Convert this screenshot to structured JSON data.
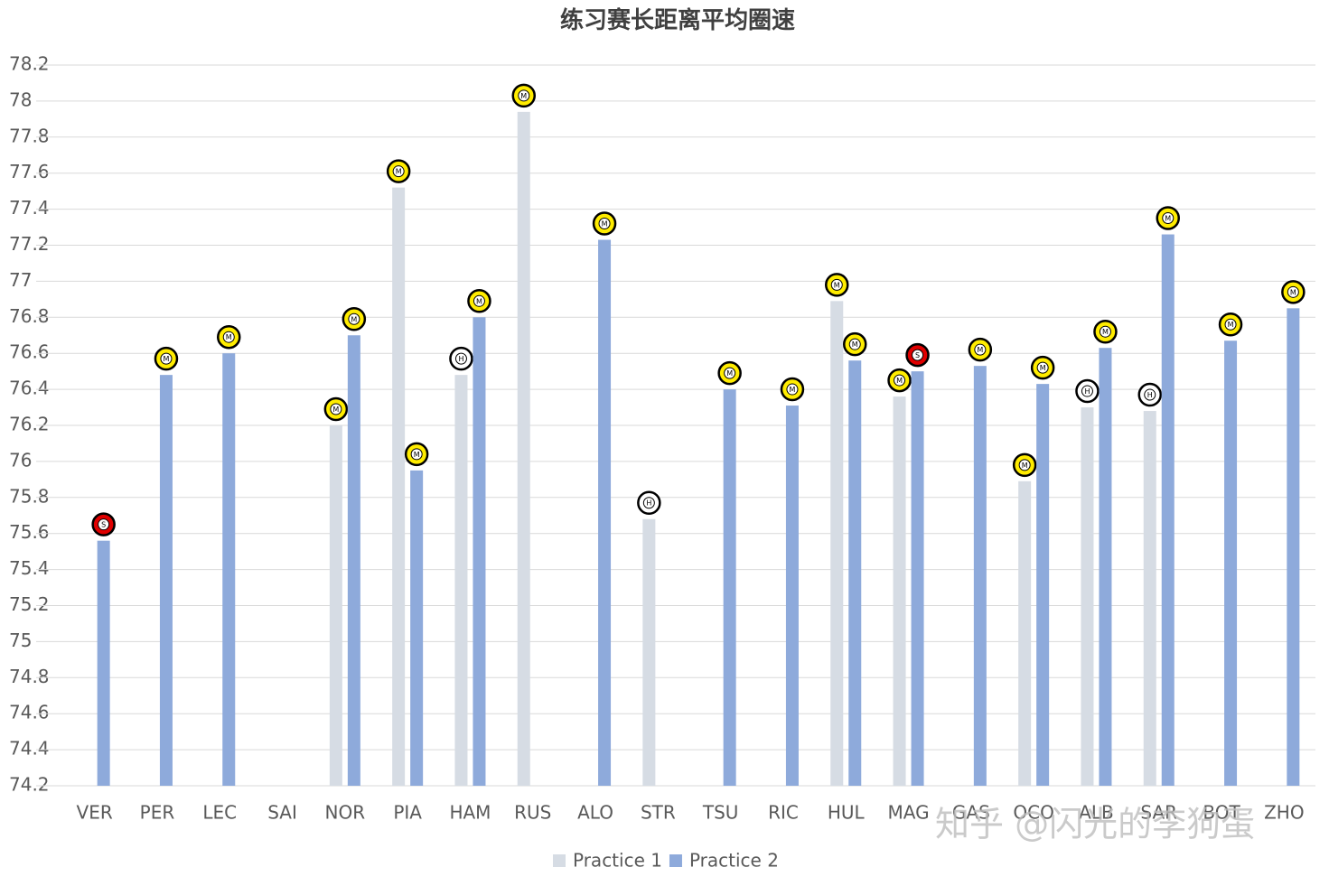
{
  "chart_data": {
    "type": "bar",
    "title": "练习赛长距离平均圈速",
    "categories": [
      "VER",
      "PER",
      "LEC",
      "SAI",
      "NOR",
      "PIA",
      "HAM",
      "RUS",
      "ALO",
      "STR",
      "TSU",
      "RIC",
      "HUL",
      "MAG",
      "GAS",
      "OCO",
      "ALB",
      "SAR",
      "BOT",
      "ZHO"
    ],
    "series": [
      {
        "name": "Practice 1",
        "color": "#d6dce4",
        "values": [
          null,
          null,
          null,
          null,
          76.2,
          77.52,
          76.48,
          77.94,
          null,
          75.68,
          null,
          null,
          76.89,
          76.36,
          null,
          75.89,
          76.3,
          76.28,
          null,
          null
        ],
        "tyres": [
          null,
          null,
          null,
          null,
          "M",
          "M",
          "H",
          "M",
          null,
          "H",
          null,
          null,
          "M",
          "M",
          null,
          "M",
          "H",
          "H",
          null,
          null
        ]
      },
      {
        "name": "Practice 2",
        "color": "#8eaadb",
        "values": [
          75.56,
          76.48,
          76.6,
          null,
          76.7,
          75.95,
          76.8,
          null,
          77.23,
          null,
          76.4,
          76.31,
          76.56,
          76.5,
          76.53,
          76.43,
          76.63,
          77.26,
          76.67,
          76.85
        ],
        "tyres": [
          "S",
          "M",
          "M",
          null,
          "M",
          "M",
          "M",
          null,
          "M",
          null,
          "M",
          "M",
          "M",
          "S",
          "M",
          "M",
          "M",
          "M",
          "M",
          "M"
        ]
      }
    ],
    "tyre_colors": {
      "S": "#e00000",
      "M": "#ffec00",
      "H": "#ffffff"
    },
    "ylim": [
      74.2,
      78.2
    ],
    "yticks": [
      74.2,
      74.4,
      74.6,
      74.8,
      75,
      75.2,
      75.4,
      75.6,
      75.8,
      76,
      76.2,
      76.4,
      76.6,
      76.8,
      77,
      77.2,
      77.4,
      77.6,
      77.8,
      78,
      78.2
    ],
    "grid": true,
    "legend": "bottom",
    "watermark": "知乎 @闪光的李狗蛋"
  }
}
